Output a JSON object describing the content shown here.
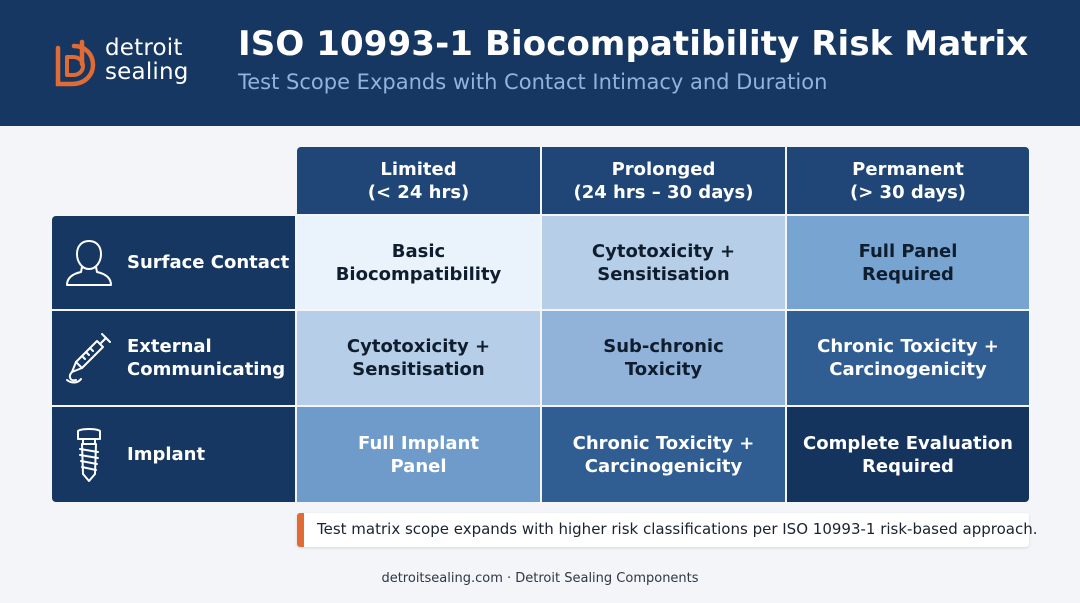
{
  "brand": {
    "logo_line1": "detroit",
    "logo_line2": "sealing",
    "accent_color": "#e06b35",
    "primary_color": "#163761"
  },
  "header": {
    "title": "ISO 10993-1 Biocompatibility Risk Matrix",
    "subtitle": "Test Scope Expands with Contact Intimacy and Duration"
  },
  "matrix": {
    "columns": [
      {
        "label": "Limited\n(< 24 hrs)"
      },
      {
        "label": "Prolonged\n(24 hrs – 30 days)"
      },
      {
        "label": "Permanent\n(> 30 days)"
      }
    ],
    "rows": [
      {
        "label": "Surface Contact",
        "icon": "person-icon",
        "cells": [
          {
            "text": "Basic\nBiocompatibility",
            "bg": "#eaf2fb",
            "fg": "#0f1d2e"
          },
          {
            "text": "Cytotoxicity +\nSensitisation",
            "bg": "#b6cee7",
            "fg": "#0f1d2e"
          },
          {
            "text": "Full Panel\nRequired",
            "bg": "#78a4d2",
            "fg": "#0f1d2e"
          }
        ]
      },
      {
        "label": "External\nCommunicating",
        "icon": "syringe-icon",
        "cells": [
          {
            "text": "Cytotoxicity +\nSensitisation",
            "bg": "#b6cee7",
            "fg": "#0f1d2e"
          },
          {
            "text": "Sub-chronic\nToxicity",
            "bg": "#91b3da",
            "fg": "#0f1d2e"
          },
          {
            "text": "Chronic Toxicity +\nCarcinogenicity",
            "bg": "#305e92",
            "fg": "#ffffff"
          }
        ]
      },
      {
        "label": "Implant",
        "icon": "dental-implant-icon",
        "cells": [
          {
            "text": "Full Implant\nPanel",
            "bg": "#6f9bca",
            "fg": "#ffffff"
          },
          {
            "text": "Chronic Toxicity +\nCarcinogenicity",
            "bg": "#305e92",
            "fg": "#ffffff"
          },
          {
            "text": "Complete Evaluation\nRequired",
            "bg": "#14345d",
            "fg": "#ffffff"
          }
        ]
      }
    ]
  },
  "note": {
    "text": "Test matrix scope expands with higher risk classifications per ISO 10993-1 risk-based approach."
  },
  "footer": {
    "text": "detroitsealing.com · Detroit Sealing Components"
  }
}
